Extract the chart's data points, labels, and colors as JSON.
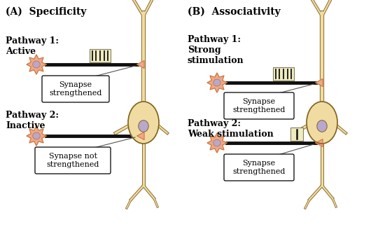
{
  "title_A": "(A)  Specificity",
  "title_B": "(B)  Associativity",
  "panel_A": {
    "pathway1_label": "Pathway 1:\nActive",
    "pathway2_label": "Pathway 2:\nInactive",
    "box1_label": "Synapse\nstrengthened",
    "box2_label": "Synapse not\nstrengthened"
  },
  "panel_B": {
    "pathway1_label": "Pathway 1:\nStrong\nstimulation",
    "pathway2_label": "Pathway 2:\nWeak stimulation",
    "box1_label": "Synapse\nstrengthened",
    "box2_label": "Synapse\nstrengthened"
  },
  "neuron_body_color": "#F0A888",
  "neuron_nucleus_color": "#B8A8CC",
  "neuron_outline_color": "#C87840",
  "post_body_color": "#F0DCA0",
  "post_outline_color": "#806020",
  "pathway_line_color": "#101010",
  "stim_box_color": "#F0EAC0",
  "stim_box_outline": "#808060",
  "bg_color": "#FFFFFF",
  "text_color": "#000000",
  "label_box_bg": "#FFFFFF",
  "label_box_edge": "#000000"
}
